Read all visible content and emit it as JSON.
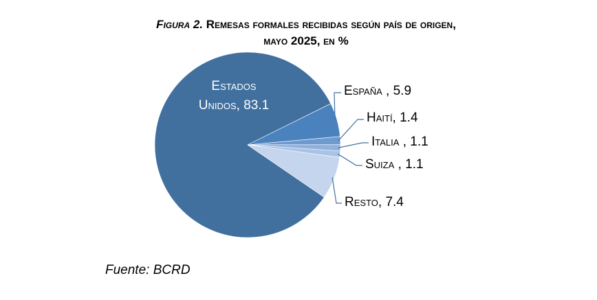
{
  "title": {
    "figure": "Figura 2.",
    "line1": "Remesas formales recibidas según país de origen,",
    "line2": "mayo 2025, en %"
  },
  "source": "Fuente: BCRD",
  "chart_data": {
    "type": "pie",
    "categories": [
      "Estados Unidos",
      "España",
      "Haití",
      "Italia",
      "Suiza",
      "Resto"
    ],
    "values": [
      83.1,
      5.9,
      1.4,
      1.1,
      1.1,
      7.4
    ],
    "labels": [
      "Estados Unidos, 83.1",
      "España , 5.9",
      "Haití, 1.4",
      "Italia , 1.1",
      "Suiza , 1.1",
      "Resto, 7.4"
    ],
    "colors": [
      "#41709f",
      "#4a82be",
      "#6f9ad0",
      "#8fb1dd",
      "#a9c3e6",
      "#c5d5ee"
    ],
    "legend": "none"
  }
}
